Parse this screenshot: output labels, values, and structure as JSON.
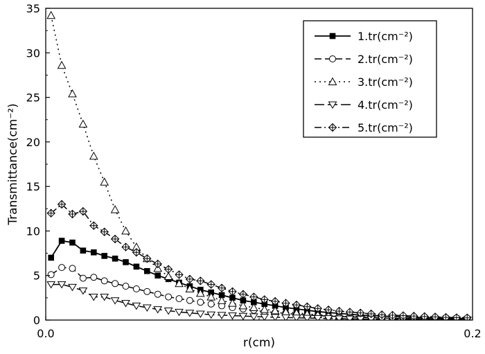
{
  "chart_data": {
    "type": "line",
    "xlabel": "r(cm)",
    "ylabel": "Transmittance(cm⁻²)",
    "xlim": [
      0,
      0.2
    ],
    "ylim": [
      0,
      35
    ],
    "x_ticks": [
      {
        "value": 0,
        "label": "0.0"
      },
      {
        "value": 0.2,
        "label": "0.2"
      }
    ],
    "y_ticks": [
      {
        "value": 0,
        "label": "0"
      },
      {
        "value": 5,
        "label": "5"
      },
      {
        "value": 10,
        "label": "10"
      },
      {
        "value": 15,
        "label": "15"
      },
      {
        "value": 20,
        "label": "20"
      },
      {
        "value": 25,
        "label": "25"
      },
      {
        "value": 30,
        "label": "30"
      },
      {
        "value": 35,
        "label": "35"
      }
    ],
    "legend_position": "top-right",
    "grid": false,
    "x": [
      0.0025,
      0.0075,
      0.0125,
      0.0175,
      0.0225,
      0.0275,
      0.0325,
      0.0375,
      0.0425,
      0.0475,
      0.0525,
      0.0575,
      0.0625,
      0.0675,
      0.0725,
      0.0775,
      0.0825,
      0.0875,
      0.0925,
      0.0975,
      0.1025,
      0.1075,
      0.1125,
      0.1175,
      0.1225,
      0.1275,
      0.1325,
      0.1375,
      0.1425,
      0.1475,
      0.1525,
      0.1575,
      0.1625,
      0.1675,
      0.1725,
      0.1775,
      0.1825,
      0.1875,
      0.1925,
      0.1975
    ],
    "series": [
      {
        "name": "1.tr(cm⁻²)",
        "line_style": "solid",
        "marker": "filled-square",
        "values": [
          7.0,
          8.9,
          8.7,
          7.8,
          7.6,
          7.2,
          6.9,
          6.5,
          6.0,
          5.5,
          5.0,
          4.6,
          4.2,
          3.8,
          3.4,
          3.1,
          2.8,
          2.5,
          2.2,
          2.0,
          1.8,
          1.6,
          1.4,
          1.25,
          1.1,
          0.95,
          0.85,
          0.75,
          0.65,
          0.55,
          0.5,
          0.45,
          0.4,
          0.35,
          0.3,
          0.27,
          0.24,
          0.2,
          0.18,
          0.15
        ]
      },
      {
        "name": "2.tr(cm⁻²)",
        "line_style": "dashed",
        "marker": "open-circle",
        "values": [
          5.1,
          5.9,
          5.8,
          4.7,
          4.8,
          4.4,
          4.1,
          3.8,
          3.5,
          3.2,
          2.9,
          2.6,
          2.4,
          2.2,
          2.0,
          1.8,
          1.6,
          1.4,
          1.25,
          1.1,
          0.95,
          0.85,
          0.75,
          0.65,
          0.55,
          0.5,
          0.45,
          0.4,
          0.35,
          0.3,
          0.27,
          0.24,
          0.2,
          0.18,
          0.15,
          0.13,
          0.12,
          0.1,
          0.09,
          0.08
        ]
      },
      {
        "name": "3.tr(cm⁻²)",
        "line_style": "dotted",
        "marker": "open-triangle-up",
        "values": [
          34.2,
          28.6,
          25.4,
          22.0,
          18.4,
          15.5,
          12.4,
          10.0,
          8.2,
          6.9,
          5.8,
          4.9,
          4.1,
          3.5,
          3.0,
          2.6,
          2.2,
          1.9,
          1.6,
          1.4,
          1.2,
          1.05,
          0.9,
          0.8,
          0.7,
          0.6,
          0.5,
          0.45,
          0.4,
          0.35,
          0.3,
          0.25,
          0.22,
          0.2,
          0.17,
          0.15,
          0.13,
          0.12,
          0.1,
          0.09
        ]
      },
      {
        "name": "4.tr(cm⁻²)",
        "line_style": "long-dash",
        "marker": "open-triangle-down",
        "values": [
          4.0,
          4.0,
          3.7,
          3.3,
          2.6,
          2.6,
          2.2,
          1.9,
          1.6,
          1.4,
          1.2,
          1.05,
          0.9,
          0.8,
          0.7,
          0.6,
          0.55,
          0.5,
          0.45,
          0.4,
          0.35,
          0.32,
          0.28,
          0.25,
          0.22,
          0.2,
          0.18,
          0.16,
          0.14,
          0.12,
          0.11,
          0.1,
          0.09,
          0.08,
          0.07,
          0.06,
          0.05,
          0.05,
          0.04,
          0.04
        ]
      },
      {
        "name": "5.tr(cm⁻²)",
        "line_style": "dash-dot",
        "marker": "crossed-diamond",
        "values": [
          12.0,
          13.0,
          11.9,
          12.2,
          10.6,
          9.9,
          9.1,
          8.2,
          7.6,
          6.9,
          6.3,
          5.7,
          5.1,
          4.6,
          4.4,
          4.0,
          3.6,
          3.2,
          2.9,
          2.6,
          2.3,
          2.1,
          1.9,
          1.7,
          1.5,
          1.3,
          1.15,
          1.0,
          0.9,
          0.8,
          0.7,
          0.6,
          0.55,
          0.5,
          0.45,
          0.4,
          0.35,
          0.3,
          0.27,
          0.25
        ]
      }
    ]
  }
}
